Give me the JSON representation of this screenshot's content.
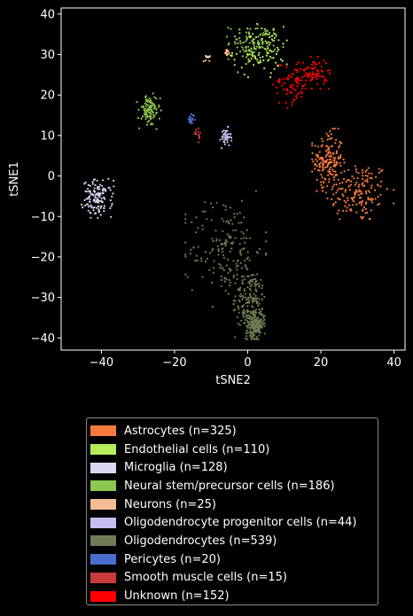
{
  "chart_data": {
    "type": "scatter",
    "title": "",
    "xlabel": "tSNE2",
    "ylabel": "tSNE1",
    "xlim": [
      -51,
      43
    ],
    "ylim": [
      -43,
      41.5
    ],
    "xticks": [
      -40,
      -20,
      0,
      20,
      40
    ],
    "yticks": [
      -40,
      -30,
      -20,
      -10,
      0,
      10,
      20,
      30,
      40
    ],
    "grid": false,
    "legend_position": "below",
    "series": [
      {
        "name": "Astrocytes (n=325)",
        "color": "#f47a3c",
        "n": 325,
        "clusters": [
          {
            "cx": 30,
            "cy": -4,
            "sx": 4.5,
            "sy": 3.8
          },
          {
            "cx": 22,
            "cy": 4,
            "sx": 2.0,
            "sy": 3.5
          }
        ]
      },
      {
        "name": "Endothelial cells (n=110)",
        "color": "#b5ec5a",
        "n": 110,
        "clusters": [
          {
            "cx": 3,
            "cy": 31,
            "sx": 3.5,
            "sy": 3.0
          }
        ]
      },
      {
        "name": "Microglia (n=128)",
        "color": "#dcd6f2",
        "n": 128,
        "clusters": [
          {
            "cx": -41,
            "cy": -5.5,
            "sx": 2.0,
            "sy": 2.2
          }
        ]
      },
      {
        "name": "Neural stem/precursor cells (n=186)",
        "color": "#8cc850",
        "n": 186,
        "clusters": [
          {
            "cx": 2,
            "cy": 33,
            "sx": 3.5,
            "sy": 2.2
          },
          {
            "cx": -27,
            "cy": 16,
            "sx": 1.5,
            "sy": 2.0
          }
        ]
      },
      {
        "name": "Neurons (n=25)",
        "color": "#f6bc94",
        "n": 25,
        "clusters": [
          {
            "cx": -11,
            "cy": 29.5,
            "sx": 0.5,
            "sy": 0.6
          },
          {
            "cx": -5.5,
            "cy": 30.5,
            "sx": 0.3,
            "sy": 0.3
          }
        ]
      },
      {
        "name": "Oligodendrocyte progenitor cells (n=44)",
        "color": "#c8bdf0",
        "n": 44,
        "clusters": [
          {
            "cx": -6,
            "cy": 9.5,
            "sx": 0.7,
            "sy": 1.2
          }
        ]
      },
      {
        "name": "Oligodendrocytes (n=539)",
        "color": "#6e7b55",
        "n": 539,
        "clusters": [
          {
            "cx": -6,
            "cy": -18,
            "sx": 5.0,
            "sy": 6.5
          },
          {
            "cx": 1,
            "cy": -31,
            "sx": 2.2,
            "sy": 4.0
          },
          {
            "cx": 2,
            "cy": -37,
            "sx": 1.2,
            "sy": 1.5
          }
        ]
      },
      {
        "name": "Pericytes (n=20)",
        "color": "#4a6ed0",
        "n": 20,
        "clusters": [
          {
            "cx": -15.5,
            "cy": 14,
            "sx": 0.5,
            "sy": 0.6
          }
        ]
      },
      {
        "name": "Smooth muscle cells (n=15)",
        "color": "#c93c3c",
        "n": 15,
        "clusters": [
          {
            "cx": -13.5,
            "cy": 10,
            "sx": 0.5,
            "sy": 0.8
          }
        ]
      },
      {
        "name": "Unknown (n=152)",
        "color": "#ff0000",
        "n": 152,
        "clusters": [
          {
            "cx": 12,
            "cy": 23,
            "sx": 2.5,
            "sy": 2.8
          },
          {
            "cx": 18,
            "cy": 25.5,
            "sx": 2.0,
            "sy": 1.8
          }
        ]
      }
    ]
  }
}
